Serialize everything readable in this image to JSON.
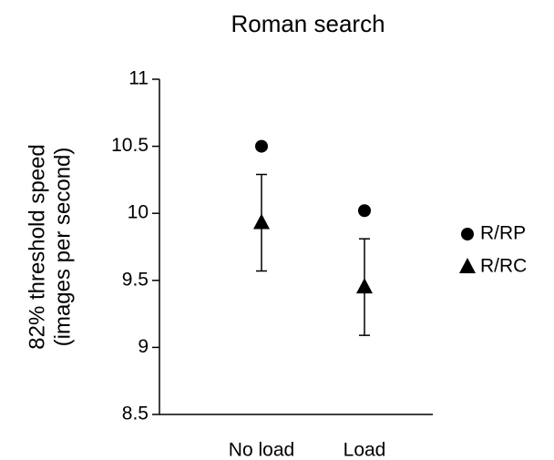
{
  "chart_data": {
    "type": "scatter",
    "title": "Roman search",
    "y_label": [
      "82% threshold speed",
      "(images per second)"
    ],
    "categories": [
      "No load",
      "Load"
    ],
    "series": [
      {
        "name": "R/RP",
        "color": "#000000",
        "marker": "circle",
        "values": [
          10.5,
          10.02
        ]
      },
      {
        "name": "R/RC",
        "color": "#000000",
        "marker": "triangle",
        "values": [
          9.93,
          9.45
        ],
        "errors": [
          0.36,
          0.36
        ]
      }
    ],
    "ylim": [
      8.5,
      11
    ],
    "yticks": [
      8.5,
      9,
      9.5,
      10,
      10.5,
      11
    ],
    "legend": "right",
    "grid": false
  }
}
